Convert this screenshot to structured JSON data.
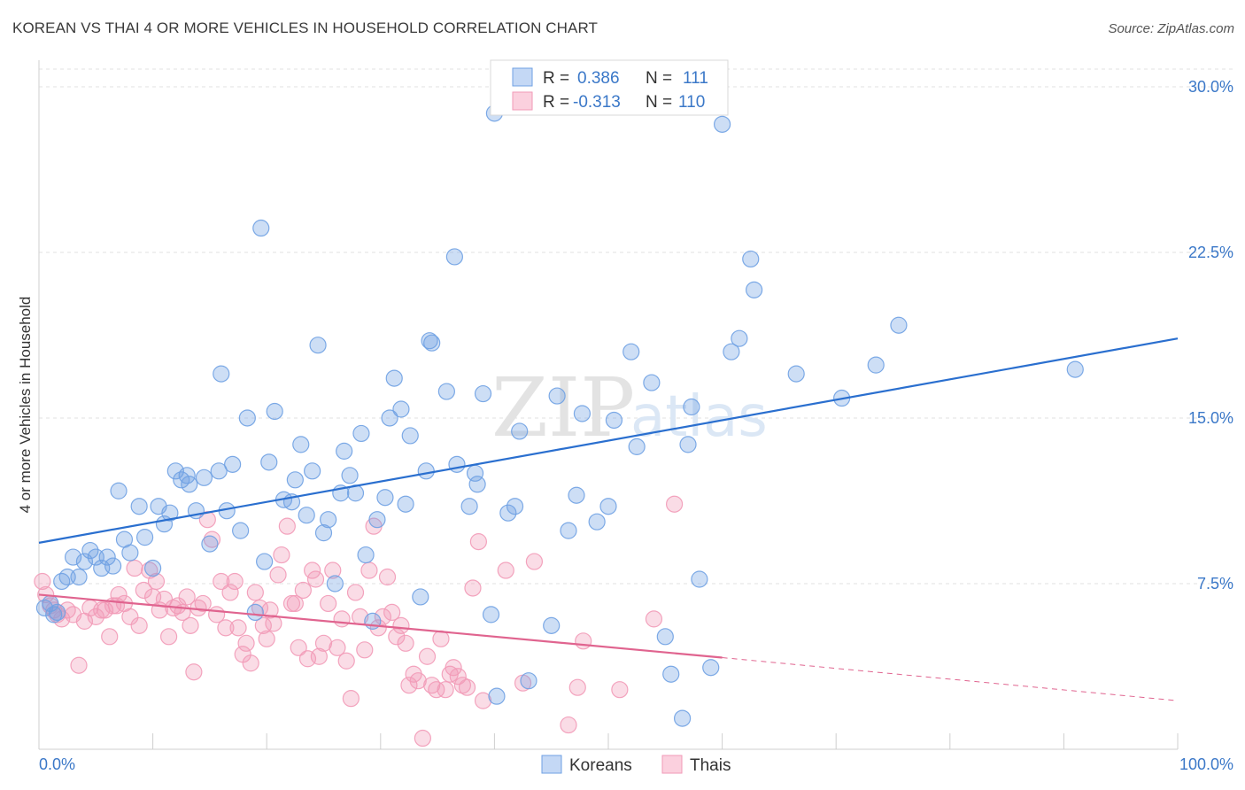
{
  "title": "KOREAN VS THAI 4 OR MORE VEHICLES IN HOUSEHOLD CORRELATION CHART",
  "source": "Source: ZipAtlas.com",
  "watermark": {
    "zip": "ZIP",
    "atlas": "atlas"
  },
  "legend": {
    "rows": [
      {
        "r_label": "R =",
        "r_value": "0.386",
        "n_label": "N =",
        "n_value": "111"
      },
      {
        "r_label": "R =",
        "r_value": "-0.313",
        "n_label": "N =",
        "n_value": "110"
      }
    ]
  },
  "bottom_legend": [
    "Koreans",
    "Thais"
  ],
  "chart_data": {
    "type": "scatter",
    "title": "KOREAN VS THAI 4 OR MORE VEHICLES IN HOUSEHOLD CORRELATION CHART",
    "xlabel": "",
    "ylabel": "4 or more Vehicles in Household",
    "xlim": [
      0,
      100
    ],
    "ylim": [
      0,
      30.8
    ],
    "x_tick_labels": [
      "0.0%",
      "100.0%"
    ],
    "y_ticks": [
      7.5,
      15.0,
      22.5,
      30.0
    ],
    "y_tick_labels": [
      "7.5%",
      "15.0%",
      "22.5%",
      "30.0%"
    ],
    "grid": true,
    "colors": {
      "koreans": "#6fa1e3",
      "thais": "#f29ab7",
      "korean_line": "#2a6fcf",
      "thai_line": "#e0648f"
    },
    "series": [
      {
        "name": "Koreans",
        "points": [
          [
            0.5,
            6.4
          ],
          [
            1,
            6.6
          ],
          [
            1.3,
            6.1
          ],
          [
            1.6,
            6.2
          ],
          [
            2,
            7.6
          ],
          [
            2.5,
            7.8
          ],
          [
            3,
            8.7
          ],
          [
            3.5,
            7.8
          ],
          [
            4,
            8.5
          ],
          [
            4.5,
            9
          ],
          [
            5,
            8.7
          ],
          [
            5.5,
            8.2
          ],
          [
            6,
            8.7
          ],
          [
            6.5,
            8.3
          ],
          [
            7,
            11.7
          ],
          [
            7.5,
            9.5
          ],
          [
            8,
            8.9
          ],
          [
            8.8,
            11
          ],
          [
            9.3,
            9.6
          ],
          [
            10,
            8.2
          ],
          [
            10.5,
            11
          ],
          [
            11,
            10.2
          ],
          [
            11.5,
            10.7
          ],
          [
            12,
            12.6
          ],
          [
            12.5,
            12.2
          ],
          [
            13,
            12.4
          ],
          [
            13.2,
            12
          ],
          [
            13.8,
            10.8
          ],
          [
            14.5,
            12.3
          ],
          [
            15,
            9.3
          ],
          [
            15.8,
            12.6
          ],
          [
            16,
            17
          ],
          [
            16.5,
            10.8
          ],
          [
            17,
            12.9
          ],
          [
            17.7,
            9.9
          ],
          [
            18.3,
            15
          ],
          [
            19,
            6.2
          ],
          [
            19.5,
            23.6
          ],
          [
            19.8,
            8.5
          ],
          [
            20.2,
            13
          ],
          [
            20.7,
            15.3
          ],
          [
            21.5,
            11.3
          ],
          [
            22.2,
            11.2
          ],
          [
            22.5,
            12.2
          ],
          [
            23,
            13.8
          ],
          [
            23.5,
            10.6
          ],
          [
            24,
            12.6
          ],
          [
            24.5,
            18.3
          ],
          [
            25,
            9.8
          ],
          [
            25.4,
            10.4
          ],
          [
            26,
            7.5
          ],
          [
            26.5,
            11.6
          ],
          [
            26.8,
            13.5
          ],
          [
            27.3,
            12.4
          ],
          [
            27.8,
            11.6
          ],
          [
            28.3,
            14.3
          ],
          [
            28.7,
            8.8
          ],
          [
            29.3,
            5.8
          ],
          [
            29.7,
            10.4
          ],
          [
            30.4,
            11.4
          ],
          [
            30.8,
            15
          ],
          [
            31.2,
            16.8
          ],
          [
            31.8,
            15.4
          ],
          [
            32.2,
            11.1
          ],
          [
            32.6,
            14.2
          ],
          [
            33.5,
            6.9
          ],
          [
            34,
            12.6
          ],
          [
            34.3,
            18.5
          ],
          [
            34.5,
            18.4
          ],
          [
            35.8,
            16.2
          ],
          [
            36.5,
            22.3
          ],
          [
            36.7,
            12.9
          ],
          [
            37.8,
            11
          ],
          [
            38.3,
            12.5
          ],
          [
            38.5,
            12
          ],
          [
            39,
            16.1
          ],
          [
            39.7,
            6.1
          ],
          [
            40.2,
            2.4
          ],
          [
            41.2,
            10.7
          ],
          [
            41.8,
            11
          ],
          [
            42.2,
            14.4
          ],
          [
            43,
            3.1
          ],
          [
            45,
            5.6
          ],
          [
            45.5,
            16
          ],
          [
            46.5,
            9.9
          ],
          [
            47.2,
            11.5
          ],
          [
            47.7,
            15.2
          ],
          [
            49,
            10.3
          ],
          [
            50,
            11
          ],
          [
            50.5,
            14.9
          ],
          [
            52,
            18
          ],
          [
            52.5,
            13.7
          ],
          [
            53.8,
            16.6
          ],
          [
            55,
            5.1
          ],
          [
            55.5,
            3.4
          ],
          [
            56.5,
            1.4
          ],
          [
            57,
            13.8
          ],
          [
            57.3,
            15.5
          ],
          [
            58,
            7.7
          ],
          [
            59,
            3.7
          ],
          [
            60,
            28.3
          ],
          [
            60.8,
            18
          ],
          [
            61.5,
            18.6
          ],
          [
            62.5,
            22.2
          ],
          [
            62.8,
            20.8
          ],
          [
            66.5,
            17
          ],
          [
            70.5,
            15.9
          ],
          [
            73.5,
            17.4
          ],
          [
            75.5,
            19.2
          ],
          [
            91,
            17.2
          ],
          [
            40,
            28.8
          ]
        ]
      },
      {
        "name": "Thais",
        "points": [
          [
            0.3,
            7.6
          ],
          [
            0.6,
            7
          ],
          [
            1,
            6.5
          ],
          [
            1.3,
            6.3
          ],
          [
            1.6,
            6.1
          ],
          [
            2,
            5.9
          ],
          [
            2.5,
            6.3
          ],
          [
            3,
            6.1
          ],
          [
            3.5,
            3.8
          ],
          [
            4,
            5.8
          ],
          [
            4.5,
            6.4
          ],
          [
            5,
            6
          ],
          [
            5.5,
            6.3
          ],
          [
            5.8,
            6.3
          ],
          [
            6.2,
            5.1
          ],
          [
            6.5,
            6.5
          ],
          [
            6.8,
            6.5
          ],
          [
            7,
            7
          ],
          [
            7.5,
            6.6
          ],
          [
            8,
            6
          ],
          [
            8.4,
            8.2
          ],
          [
            8.8,
            5.6
          ],
          [
            9.2,
            7.2
          ],
          [
            9.7,
            8.1
          ],
          [
            10,
            6.9
          ],
          [
            10.3,
            7.6
          ],
          [
            10.6,
            6.3
          ],
          [
            11,
            6.8
          ],
          [
            11.4,
            5.1
          ],
          [
            11.8,
            6.4
          ],
          [
            12.2,
            6.5
          ],
          [
            12.6,
            6.2
          ],
          [
            13,
            6.9
          ],
          [
            13.3,
            5.6
          ],
          [
            13.6,
            3.5
          ],
          [
            14,
            6.4
          ],
          [
            14.4,
            6.6
          ],
          [
            14.8,
            10.4
          ],
          [
            15.2,
            9.5
          ],
          [
            15.6,
            6.1
          ],
          [
            16,
            7.6
          ],
          [
            16.4,
            5.5
          ],
          [
            16.8,
            7.1
          ],
          [
            17.2,
            7.6
          ],
          [
            17.5,
            5.5
          ],
          [
            17.9,
            4.3
          ],
          [
            18.2,
            4.8
          ],
          [
            18.6,
            3.9
          ],
          [
            19,
            7.1
          ],
          [
            19.4,
            6.4
          ],
          [
            19.7,
            5.6
          ],
          [
            20,
            5
          ],
          [
            20.3,
            6.3
          ],
          [
            20.6,
            5.7
          ],
          [
            21,
            7.9
          ],
          [
            21.3,
            8.8
          ],
          [
            21.8,
            10.1
          ],
          [
            22.2,
            6.6
          ],
          [
            22.5,
            6.6
          ],
          [
            22.8,
            4.6
          ],
          [
            23.2,
            7.2
          ],
          [
            23.6,
            4.1
          ],
          [
            24,
            8.1
          ],
          [
            24.3,
            7.7
          ],
          [
            24.6,
            4.2
          ],
          [
            25,
            4.8
          ],
          [
            25.4,
            6.6
          ],
          [
            25.8,
            8.1
          ],
          [
            26.2,
            4.6
          ],
          [
            26.6,
            5.9
          ],
          [
            27,
            4
          ],
          [
            27.4,
            2.3
          ],
          [
            27.8,
            7.1
          ],
          [
            28.2,
            6
          ],
          [
            28.6,
            4.5
          ],
          [
            29,
            8.1
          ],
          [
            29.4,
            10.1
          ],
          [
            29.8,
            5.5
          ],
          [
            30.2,
            6
          ],
          [
            30.6,
            7.8
          ],
          [
            31,
            6.2
          ],
          [
            31.4,
            5.1
          ],
          [
            31.8,
            5.6
          ],
          [
            32.2,
            4.8
          ],
          [
            32.5,
            2.9
          ],
          [
            32.9,
            3.4
          ],
          [
            33.3,
            3.1
          ],
          [
            33.7,
            0.5
          ],
          [
            34.1,
            4.2
          ],
          [
            34.5,
            2.9
          ],
          [
            34.9,
            2.7
          ],
          [
            35.3,
            5
          ],
          [
            35.7,
            2.7
          ],
          [
            36.1,
            3.4
          ],
          [
            36.4,
            3.7
          ],
          [
            36.8,
            3.3
          ],
          [
            37.2,
            2.9
          ],
          [
            37.6,
            2.8
          ],
          [
            38.1,
            7.3
          ],
          [
            38.6,
            9.4
          ],
          [
            39,
            2.2
          ],
          [
            41,
            8.1
          ],
          [
            42.5,
            3
          ],
          [
            43.5,
            8.5
          ],
          [
            46.5,
            1.1
          ],
          [
            47.3,
            2.8
          ],
          [
            47.8,
            4.9
          ],
          [
            51,
            2.7
          ],
          [
            54,
            5.9
          ],
          [
            55.8,
            11.1
          ]
        ]
      }
    ],
    "trendlines": [
      {
        "name": "Koreans",
        "x": [
          0,
          100
        ],
        "y": [
          9.35,
          18.6
        ],
        "style": "solid"
      },
      {
        "name": "Thais",
        "x": [
          0,
          60
        ],
        "y": [
          7.0,
          4.15
        ],
        "style": "solid"
      },
      {
        "name": "Thais",
        "x": [
          60,
          100
        ],
        "y": [
          4.15,
          2.2
        ],
        "style": "dashed"
      }
    ]
  }
}
